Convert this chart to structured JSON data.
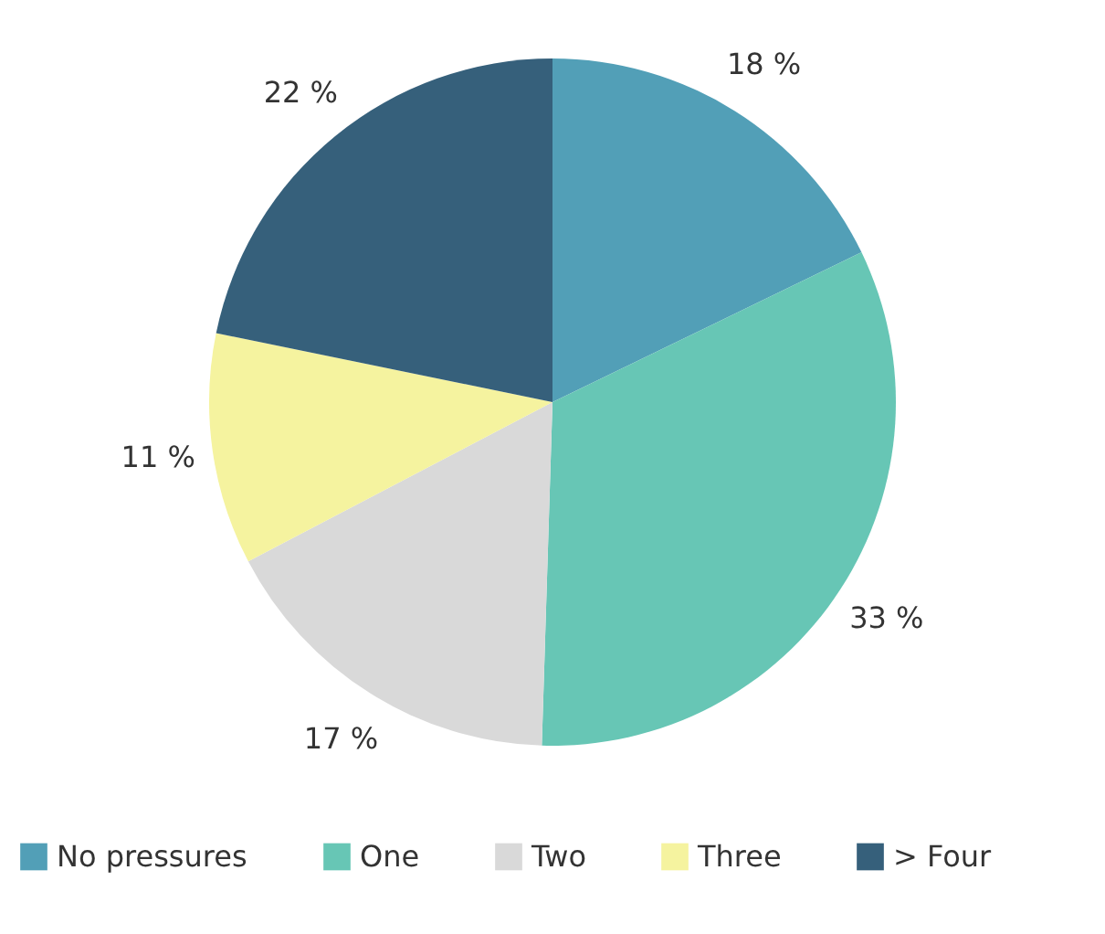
{
  "chart_data": {
    "type": "pie",
    "categories": [
      "No pressures",
      "One",
      "Two",
      "Three",
      "> Four"
    ],
    "values": [
      18,
      33,
      17,
      11,
      22
    ],
    "colors": [
      "#529fb7",
      "#67c6b5",
      "#d9d9d9",
      "#f5f39f",
      "#36607b"
    ],
    "value_labels": [
      "18 %",
      "33 %",
      "17 %",
      "11 %",
      "22 %"
    ],
    "legend": "bottom"
  }
}
